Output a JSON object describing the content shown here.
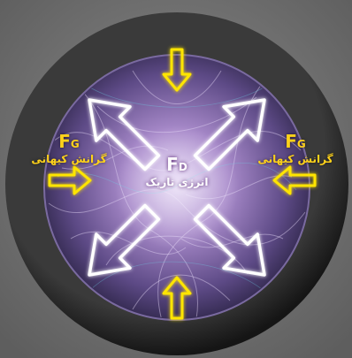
{
  "diagram": {
    "left_force": {
      "symbol": "F",
      "subscript": "G",
      "caption": "گرانش کیهانی"
    },
    "right_force": {
      "symbol": "F",
      "subscript": "G",
      "caption": "گرانش کیهانی"
    },
    "center_force": {
      "symbol": "F",
      "subscript": "D",
      "caption": "انرژی تاریک"
    },
    "colors": {
      "background": "#6f6f6f",
      "rim": "#2b2b2b",
      "sphere_inner": "#b79ad6",
      "sphere_outer": "#3c2f5e",
      "outward_arrow": "#ffffff",
      "inward_arrow": "#ffe500"
    },
    "icons": [
      "outward-arrow-icon",
      "inward-arrow-icon"
    ]
  }
}
